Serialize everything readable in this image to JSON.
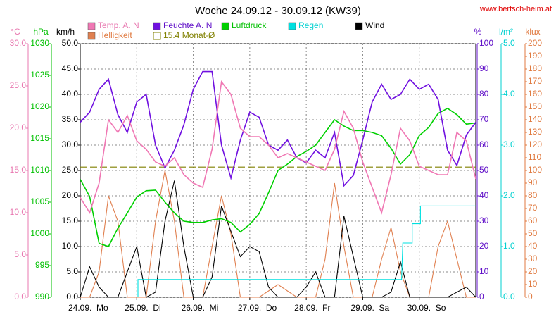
{
  "chart_data": {
    "type": "line",
    "title": "Woche 24.09.12 - 30.09.12 (KW39)",
    "source": "www.bertsch-heim.at",
    "grid": true,
    "xlim": [
      0,
      168
    ],
    "xticks": [
      {
        "value": 0,
        "label": "24.09.  Mo"
      },
      {
        "value": 24,
        "label": "25.09.  Di"
      },
      {
        "value": 48,
        "label": "26.09.  Mi"
      },
      {
        "value": 72,
        "label": "27.09.  Do"
      },
      {
        "value": 96,
        "label": "28.09.  Fr"
      },
      {
        "value": 120,
        "label": "29.09.  Sa"
      },
      {
        "value": 144,
        "label": "30.09.  So"
      }
    ],
    "x": [
      0,
      4,
      8,
      12,
      16,
      20,
      24,
      28,
      32,
      36,
      40,
      44,
      48,
      52,
      56,
      60,
      64,
      68,
      72,
      76,
      80,
      84,
      88,
      92,
      96,
      100,
      104,
      108,
      112,
      116,
      120,
      124,
      128,
      132,
      136,
      140,
      144,
      148,
      152,
      156,
      160,
      164,
      168
    ],
    "axes": [
      {
        "unit": "°C",
        "color": "#e878b0",
        "lim": [
          0,
          30
        ],
        "ticks": [
          {
            "value": 0,
            "label": "0.0"
          },
          {
            "value": 5,
            "label": "5.0"
          },
          {
            "value": 10,
            "label": "10.0"
          },
          {
            "value": 15,
            "label": "15.0"
          },
          {
            "value": 20,
            "label": "20.0"
          },
          {
            "value": 25,
            "label": "25.0"
          },
          {
            "value": 30,
            "label": "30.0"
          }
        ]
      },
      {
        "unit": "hPa",
        "color": "#00c000",
        "lim": [
          990,
          1030
        ],
        "ticks": [
          990,
          995,
          1000,
          1005,
          1010,
          1015,
          1020,
          1025,
          1030
        ]
      },
      {
        "unit": "km/h",
        "color": "#000000",
        "lim": [
          0,
          50
        ],
        "ticks": [
          {
            "value": 0,
            "label": "0.0"
          },
          {
            "value": 5,
            "label": "5.0"
          },
          {
            "value": 10,
            "label": "10.0"
          },
          {
            "value": 15,
            "label": "15.0"
          },
          {
            "value": 20,
            "label": "20.0"
          },
          {
            "value": 25,
            "label": "25.0"
          },
          {
            "value": 30,
            "label": "30.0"
          },
          {
            "value": 35,
            "label": "35.0"
          },
          {
            "value": 40,
            "label": "40.0"
          },
          {
            "value": 45,
            "label": "45.0"
          },
          {
            "value": 50,
            "label": "50.0"
          }
        ]
      },
      {
        "unit": "%",
        "color": "#6010c8",
        "lim": [
          0,
          100
        ],
        "ticks": [
          0,
          10,
          20,
          30,
          40,
          50,
          60,
          70,
          80,
          90,
          100
        ]
      },
      {
        "unit": "l/m²",
        "color": "#00d0d0",
        "lim": [
          0,
          5
        ],
        "ticks": [
          {
            "value": 0,
            "label": "0.0"
          },
          {
            "value": 1,
            "label": "1.0"
          },
          {
            "value": 2,
            "label": "2.0"
          },
          {
            "value": 3,
            "label": "3.0"
          },
          {
            "value": 4,
            "label": "4.0"
          },
          {
            "value": 5,
            "label": "5.0"
          }
        ]
      },
      {
        "unit": "klux",
        "color": "#e07a40",
        "lim": [
          0,
          200
        ],
        "ticks": [
          0,
          10,
          20,
          30,
          40,
          50,
          60,
          70,
          80,
          90,
          100,
          110,
          120,
          130,
          140,
          150,
          160,
          170,
          180,
          190,
          200
        ]
      }
    ],
    "series": [
      {
        "name": "Temp. A. N",
        "color": "#f078b4",
        "axis": 0,
        "values": [
          11.8,
          10.0,
          13.5,
          21.0,
          19.5,
          21.5,
          18.5,
          17.5,
          16.0,
          15.5,
          16.5,
          14.5,
          13.5,
          13.0,
          17.5,
          25.5,
          24.0,
          20.0,
          19.0,
          19.0,
          18.0,
          16.5,
          17.0,
          16.5,
          16.0,
          15.5,
          15.0,
          17.5,
          22.0,
          20.0,
          16.0,
          13.0,
          10.0,
          14.5,
          20.0,
          18.5,
          15.5,
          15.0,
          14.5,
          14.5,
          19.5,
          18.5,
          14.0
        ]
      },
      {
        "name": "Feuchte A. N",
        "color": "#7010e0",
        "axis": 3,
        "values": [
          69,
          73,
          82,
          86,
          72,
          65,
          77,
          80,
          60,
          51,
          58,
          68,
          82,
          89,
          89,
          60,
          47,
          62,
          73,
          71,
          60,
          58,
          62,
          55,
          53,
          58,
          55,
          65,
          44,
          48,
          62,
          77,
          84,
          78,
          80,
          86,
          82,
          84,
          78,
          58,
          52,
          64,
          69
        ]
      },
      {
        "name": "Luftdruck",
        "color": "#00d000",
        "axis": 1,
        "values": [
          1008.6,
          1005.9,
          998.5,
          998.0,
          1000.9,
          1003.3,
          1005.8,
          1006.8,
          1006.9,
          1005.0,
          1003.3,
          1002.0,
          1001.8,
          1001.8,
          1002.2,
          1002.4,
          1001.8,
          1000.3,
          1001.5,
          1003.2,
          1006.5,
          1010.0,
          1011.0,
          1012.2,
          1013.0,
          1014.0,
          1016.0,
          1018.0,
          1017.0,
          1016.3,
          1016.3,
          1016.0,
          1015.5,
          1013.5,
          1011.0,
          1012.5,
          1015.5,
          1016.8,
          1019.0,
          1019.8,
          1018.8,
          1017.3,
          1017.5
        ]
      },
      {
        "name": "Regen",
        "color": "#00e0e0",
        "axis": 4,
        "x": [
          24.5,
          24.5,
          136.5,
          137,
          141,
          141,
          144.5,
          144.5,
          168
        ],
        "values": [
          0,
          0.35,
          0.35,
          1.07,
          1.07,
          1.45,
          1.45,
          1.8,
          1.8
        ]
      },
      {
        "name": "Wind",
        "color": "#000000",
        "axis": 2,
        "values": [
          0,
          6,
          2,
          0,
          0,
          5,
          10,
          0,
          1,
          15,
          23,
          10,
          0,
          0,
          4,
          18,
          13,
          8,
          10,
          9,
          2,
          0,
          0,
          0,
          2,
          5,
          0,
          0,
          16,
          8,
          0,
          0,
          0,
          1,
          7,
          0,
          0,
          0,
          0,
          0,
          1,
          2,
          0
        ]
      },
      {
        "name": "Helligkeit",
        "color": "#e08050",
        "axis": 5,
        "values": [
          0,
          0,
          20,
          80,
          60,
          0,
          0,
          0,
          60,
          100,
          60,
          0,
          0,
          0,
          40,
          80,
          50,
          0,
          0,
          0,
          5,
          10,
          5,
          0,
          0,
          0,
          30,
          90,
          40,
          0,
          0,
          0,
          30,
          55,
          20,
          0,
          0,
          0,
          40,
          60,
          30,
          0,
          0
        ]
      }
    ],
    "monthly_avg": {
      "label": "15.4 Monat-Ø",
      "value": 15.4,
      "axis": 0,
      "color": "#808000"
    }
  }
}
